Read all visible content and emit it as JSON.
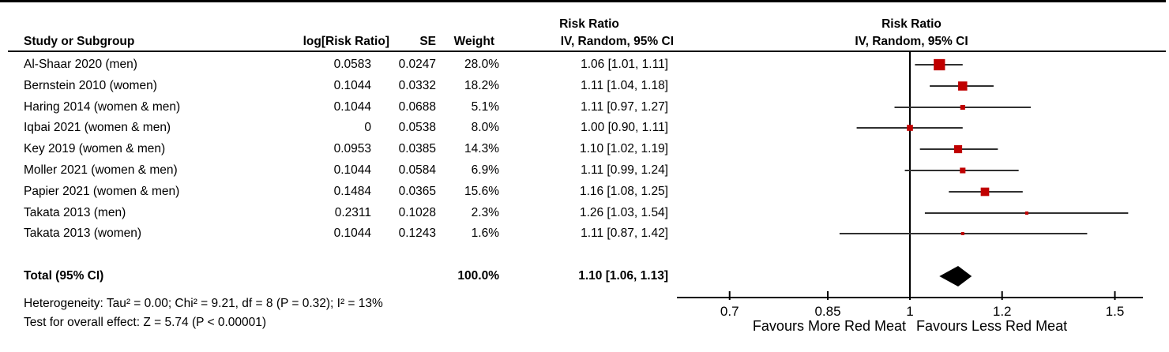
{
  "table": {
    "headers": {
      "study": "Study or Subgroup",
      "log_rr": "log[Risk Ratio]",
      "se": "SE",
      "weight": "Weight",
      "ci_group_title": "Risk Ratio",
      "ci_group_sub": "IV, Random, 95% CI"
    }
  },
  "plot": {
    "header_title": "Risk Ratio",
    "header_sub": "IV, Random, 95% CI",
    "favours_left": "Favours More Red Meat",
    "favours_right": "Favours Less Red Meat"
  },
  "notes": {
    "heterogeneity": "Heterogeneity: Tau² = 0.00; Chi² = 9.21, df = 8 (P = 0.32); I² = 13%",
    "overall_effect": "Test for overall effect: Z = 5.74 (P < 0.00001)"
  },
  "chart_data": {
    "type": "forest",
    "effect_measure": "Risk Ratio",
    "model": "IV, Random, 95% CI",
    "x_scale": "log",
    "x_ticks": [
      0.7,
      0.85,
      1,
      1.2,
      1.5
    ],
    "x_tick_labels": [
      "0.7",
      "0.85",
      "1",
      "1.2",
      "1.5"
    ],
    "x_axis_range": [
      0.63,
      1.58
    ],
    "null_value": 1,
    "studies": [
      {
        "name": "Al-Shaar 2020 (men)",
        "log_rr": "0.0583",
        "se": "0.0247",
        "weight": "28.0%",
        "weight_pct": 28.0,
        "rr": 1.06,
        "ci_low": 1.01,
        "ci_high": 1.11,
        "ci_text": "1.06 [1.01, 1.11]"
      },
      {
        "name": "Bernstein 2010 (women)",
        "log_rr": "0.1044",
        "se": "0.0332",
        "weight": "18.2%",
        "weight_pct": 18.2,
        "rr": 1.11,
        "ci_low": 1.04,
        "ci_high": 1.18,
        "ci_text": "1.11 [1.04, 1.18]"
      },
      {
        "name": "Haring 2014 (women & men)",
        "log_rr": "0.1044",
        "se": "0.0688",
        "weight": "5.1%",
        "weight_pct": 5.1,
        "rr": 1.11,
        "ci_low": 0.97,
        "ci_high": 1.27,
        "ci_text": "1.11 [0.97, 1.27]"
      },
      {
        "name": "Iqbai 2021 (women & men)",
        "log_rr": "0",
        "se": "0.0538",
        "weight": "8.0%",
        "weight_pct": 8.0,
        "rr": 1.0,
        "ci_low": 0.9,
        "ci_high": 1.11,
        "ci_text": "1.00 [0.90, 1.11]"
      },
      {
        "name": "Key 2019 (women & men)",
        "log_rr": "0.0953",
        "se": "0.0385",
        "weight": "14.3%",
        "weight_pct": 14.3,
        "rr": 1.1,
        "ci_low": 1.02,
        "ci_high": 1.19,
        "ci_text": "1.10 [1.02, 1.19]"
      },
      {
        "name": "Moller 2021 (women & men)",
        "log_rr": "0.1044",
        "se": "0.0584",
        "weight": "6.9%",
        "weight_pct": 6.9,
        "rr": 1.11,
        "ci_low": 0.99,
        "ci_high": 1.24,
        "ci_text": "1.11 [0.99, 1.24]"
      },
      {
        "name": "Papier 2021 (women & men)",
        "log_rr": "0.1484",
        "se": "0.0365",
        "weight": "15.6%",
        "weight_pct": 15.6,
        "rr": 1.16,
        "ci_low": 1.08,
        "ci_high": 1.25,
        "ci_text": "1.16 [1.08, 1.25]"
      },
      {
        "name": "Takata 2013 (men)",
        "log_rr": "0.2311",
        "se": "0.1028",
        "weight": "2.3%",
        "weight_pct": 2.3,
        "rr": 1.26,
        "ci_low": 1.03,
        "ci_high": 1.54,
        "ci_text": "1.26 [1.03, 1.54]"
      },
      {
        "name": "Takata 2013 (women)",
        "log_rr": "0.1044",
        "se": "0.1243",
        "weight": "1.6%",
        "weight_pct": 1.6,
        "rr": 1.11,
        "ci_low": 0.87,
        "ci_high": 1.42,
        "ci_text": "1.11 [0.87, 1.42]"
      }
    ],
    "total": {
      "label": "Total (95% CI)",
      "weight": "100.0%",
      "weight_pct": 100.0,
      "rr": 1.1,
      "ci_low": 1.06,
      "ci_high": 1.13,
      "ci_text": "1.10 [1.06, 1.13]"
    },
    "colors": {
      "square": "#c00000",
      "ci_line": "#303030",
      "diamond": "#000000",
      "axis": "#000000"
    }
  }
}
